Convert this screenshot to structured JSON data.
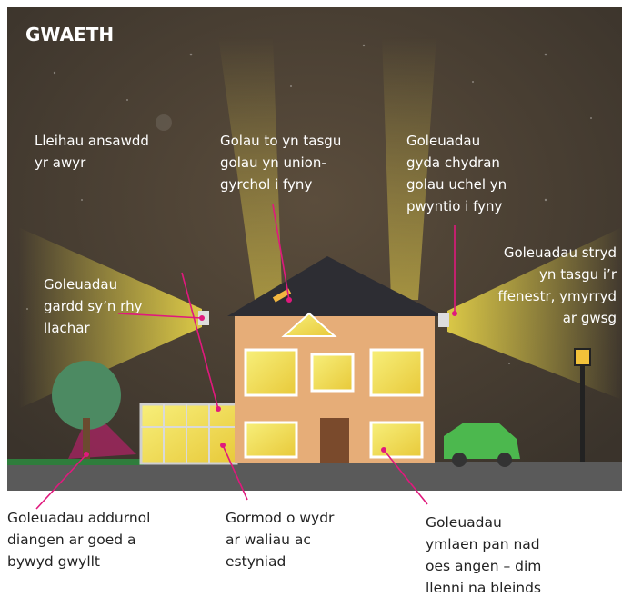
{
  "header": {
    "title": "GWAETH"
  },
  "labels": [
    {
      "lines": [
        "Lleihau ansawdd",
        "yr awyr"
      ]
    },
    {
      "lines": [
        "Golau to yn tasgu",
        "golau yn union-",
        "gyrchol i fyny"
      ]
    },
    {
      "lines": [
        "Goleuadau",
        "gyda chydran",
        "golau uchel yn",
        "pwyntio i fyny"
      ]
    },
    {
      "lines": [
        "Goleuadau stryd",
        "yn tasgu i’r",
        "ffenestr, ymyrryd",
        "ar gwsg"
      ]
    },
    {
      "lines": [
        "Goleuadau",
        "gardd sy’n rhy",
        "llachar"
      ]
    }
  ],
  "captions": [
    {
      "lines": [
        "Goleuadau addurnol",
        "diangen ar goed a",
        "bywyd gwyllt"
      ]
    },
    {
      "lines": [
        "Gormod o wydr",
        "ar waliau ac",
        "estyniad"
      ]
    },
    {
      "lines": [
        "Goleuadau",
        "ymlaen pan nad",
        "oes angen – dim",
        "llenni na bleinds"
      ]
    }
  ]
}
